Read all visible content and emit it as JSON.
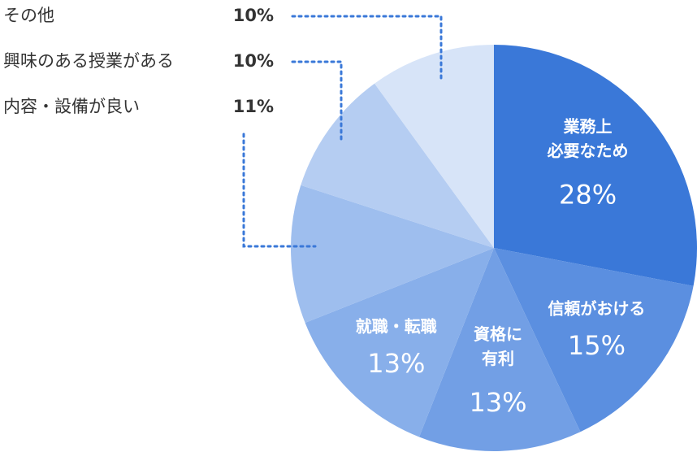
{
  "chart_data": {
    "type": "pie",
    "categories": [
      "業務上\n必要なため",
      "信頼がおける",
      "資格に\n有利",
      "就職・転職",
      "内容・設備が良い",
      "興味のある授業がある",
      "その他"
    ],
    "values": [
      28,
      15,
      13,
      13,
      11,
      10,
      10
    ],
    "value_labels": [
      "28%",
      "15%",
      "13%",
      "13%",
      "11%",
      "10%",
      "10%"
    ],
    "colors": [
      "#3a78d8",
      "#5b8fe0",
      "#729fe5",
      "#88afea",
      "#9ebeee",
      "#b5cdf2",
      "#d7e4f8"
    ]
  }
}
